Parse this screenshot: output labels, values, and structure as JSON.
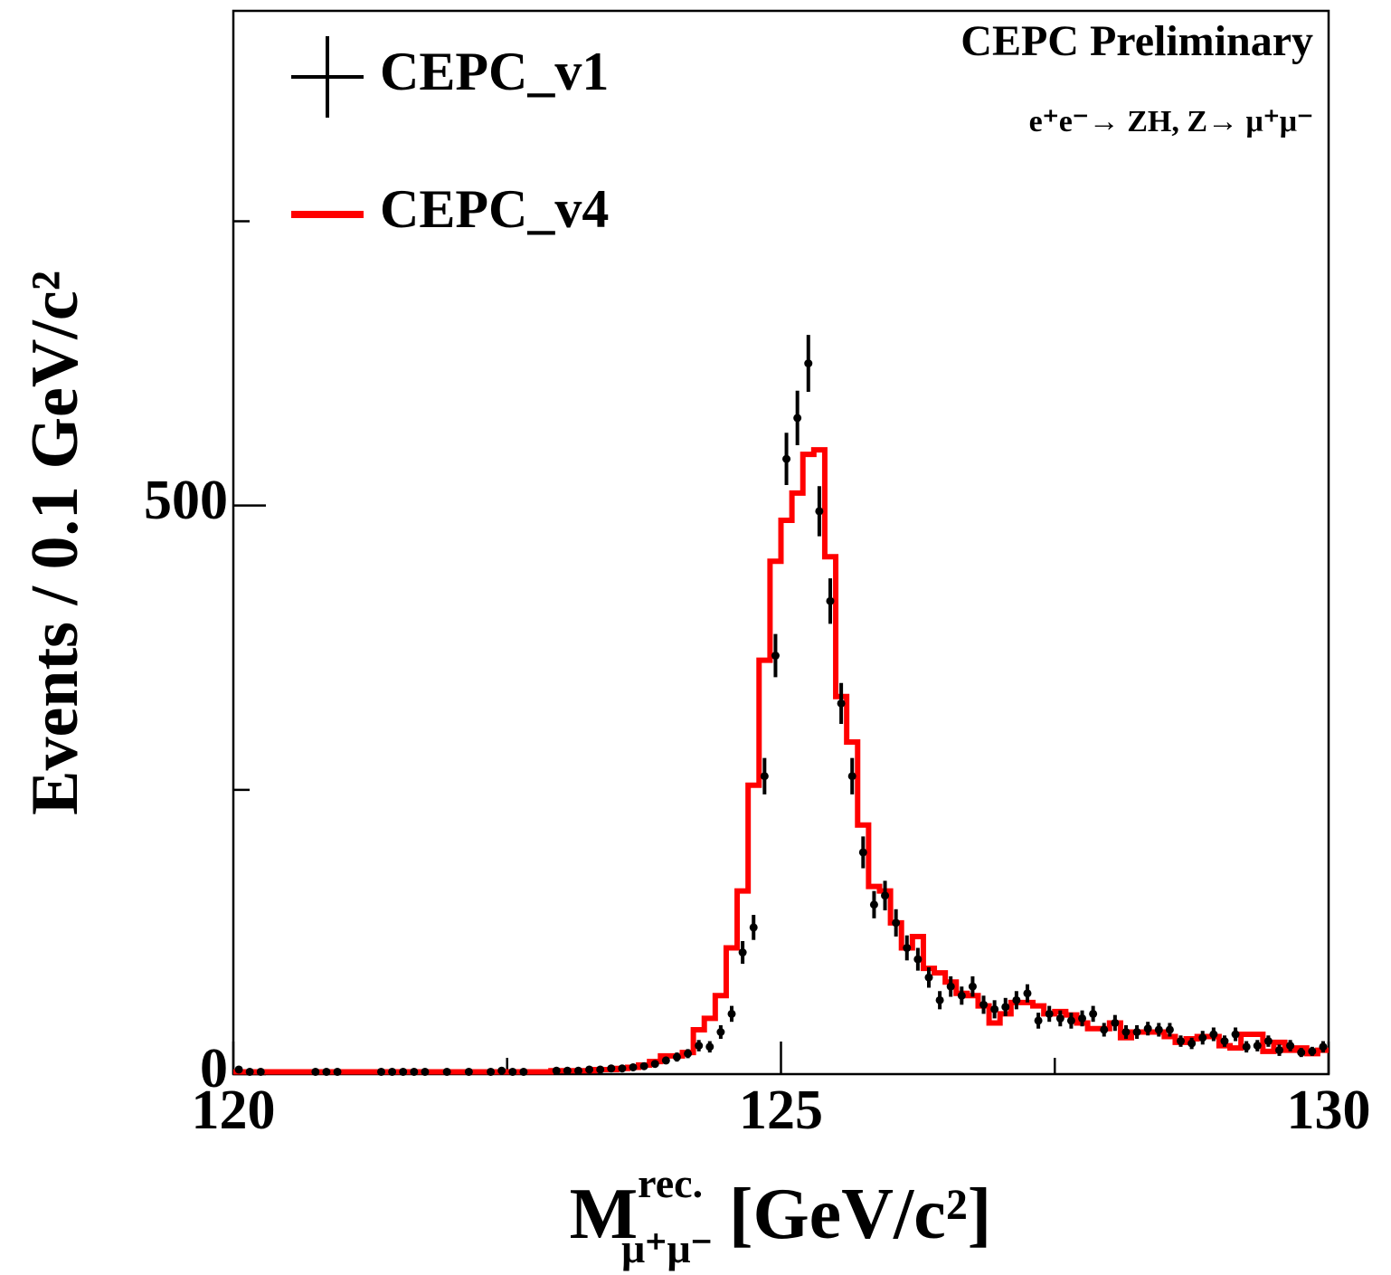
{
  "chart_data": {
    "type": "histogram",
    "annotation": "CEPC Preliminary",
    "process": "e⁺e⁻→ ZH, Z→  μ⁺μ⁻",
    "y_label": "Events / 0.1 GeV/c²",
    "x_label": {
      "base": "M",
      "sup": "rec.",
      "sub": "μ⁺μ⁻",
      "unit": "[GeV/c²]"
    },
    "xlim": [
      120,
      130
    ],
    "ylim": [
      0,
      935
    ],
    "xticks": [
      120,
      125,
      130
    ],
    "yticks": [
      0,
      500
    ],
    "x_minor_ticks": [
      122.5,
      127.5
    ],
    "y_minor_ticks": [
      250,
      750
    ],
    "bins": [
      120,
      120.1,
      120.2,
      120.3,
      120.4,
      120.5,
      120.6,
      120.7,
      120.8,
      120.9,
      121,
      121.1,
      121.2,
      121.3,
      121.4,
      121.5,
      121.6,
      121.7,
      121.8,
      121.9,
      122,
      122.1,
      122.2,
      122.3,
      122.4,
      122.5,
      122.6,
      122.7,
      122.8,
      122.9,
      123,
      123.1,
      123.2,
      123.3,
      123.4,
      123.5,
      123.6,
      123.7,
      123.8,
      123.9,
      124,
      124.1,
      124.2,
      124.3,
      124.4,
      124.5,
      124.6,
      124.7,
      124.8,
      124.9,
      125,
      125.1,
      125.2,
      125.3,
      125.4,
      125.5,
      125.6,
      125.7,
      125.8,
      125.9,
      126,
      126.1,
      126.2,
      126.3,
      126.4,
      126.5,
      126.6,
      126.7,
      126.8,
      126.9,
      127,
      127.1,
      127.2,
      127.3,
      127.4,
      127.5,
      127.6,
      127.7,
      127.8,
      127.9,
      128,
      128.1,
      128.2,
      128.3,
      128.4,
      128.5,
      128.6,
      128.7,
      128.8,
      128.9,
      129,
      129.1,
      129.2,
      129.3,
      129.4,
      129.5,
      129.6,
      129.7,
      129.8,
      129.9,
      130
    ],
    "series": [
      {
        "name": "CEPC_v1",
        "color": "#000000",
        "style": "points",
        "values": [
          4,
          2,
          2,
          null,
          null,
          null,
          null,
          2,
          2,
          2,
          null,
          null,
          null,
          2,
          2,
          2,
          2,
          2,
          null,
          2,
          null,
          2,
          null,
          2,
          3,
          2,
          2,
          null,
          null,
          3,
          3,
          3,
          4,
          4,
          5,
          5,
          6,
          7,
          9,
          12,
          15,
          18,
          25,
          24,
          37,
          53,
          107,
          129,
          262,
          368,
          541,
          577,
          625,
          495,
          416,
          326,
          262,
          195,
          149,
          157,
          133,
          111,
          101,
          85,
          65,
          77,
          69,
          77,
          61,
          57,
          59,
          65,
          71,
          47,
          53,
          49,
          47,
          49,
          53,
          39,
          45,
          37,
          37,
          40,
          39,
          39,
          29,
          27,
          32,
          35,
          29,
          35,
          24,
          25,
          29,
          21,
          25,
          19,
          20,
          24
        ],
        "errors": [
          2,
          1,
          1,
          null,
          null,
          null,
          null,
          1,
          1,
          1,
          null,
          null,
          null,
          1,
          1,
          1,
          1,
          1,
          null,
          1,
          null,
          1,
          null,
          1,
          2,
          1,
          1,
          null,
          null,
          2,
          2,
          2,
          2,
          2,
          2,
          2,
          2,
          3,
          3,
          3,
          4,
          4,
          5,
          5,
          6,
          7,
          10,
          11,
          16,
          19,
          23,
          24,
          25,
          22,
          20,
          18,
          16,
          14,
          12,
          13,
          12,
          11,
          10,
          9,
          8,
          9,
          8,
          9,
          8,
          8,
          8,
          8,
          8,
          7,
          7,
          7,
          7,
          7,
          7,
          6,
          7,
          6,
          6,
          6,
          6,
          6,
          5,
          5,
          6,
          6,
          5,
          6,
          5,
          5,
          5,
          5,
          5,
          4,
          4,
          5
        ]
      },
      {
        "name": "CEPC_v4",
        "color": "#ff0000",
        "style": "step",
        "values": [
          2,
          2,
          2,
          2,
          2,
          2,
          2,
          2,
          2,
          2,
          2,
          2,
          2,
          2,
          2,
          2,
          2,
          2,
          2,
          2,
          2,
          2,
          2,
          2,
          2,
          2,
          2,
          2,
          2,
          3,
          3,
          3,
          3,
          4,
          4,
          5,
          6,
          8,
          11,
          16,
          16,
          19,
          39,
          49,
          69,
          111,
          161,
          254,
          364,
          451,
          487,
          511,
          545,
          549,
          455,
          332,
          292,
          219,
          165,
          161,
          133,
          111,
          121,
          93,
          89,
          81,
          71,
          69,
          60,
          45,
          53,
          63,
          63,
          60,
          53,
          55,
          52,
          45,
          40,
          40,
          45,
          32,
          37,
          37,
          37,
          33,
          28,
          31,
          33,
          33,
          25,
          23,
          35,
          35,
          20,
          28,
          21,
          23,
          18,
          21
        ]
      }
    ]
  }
}
